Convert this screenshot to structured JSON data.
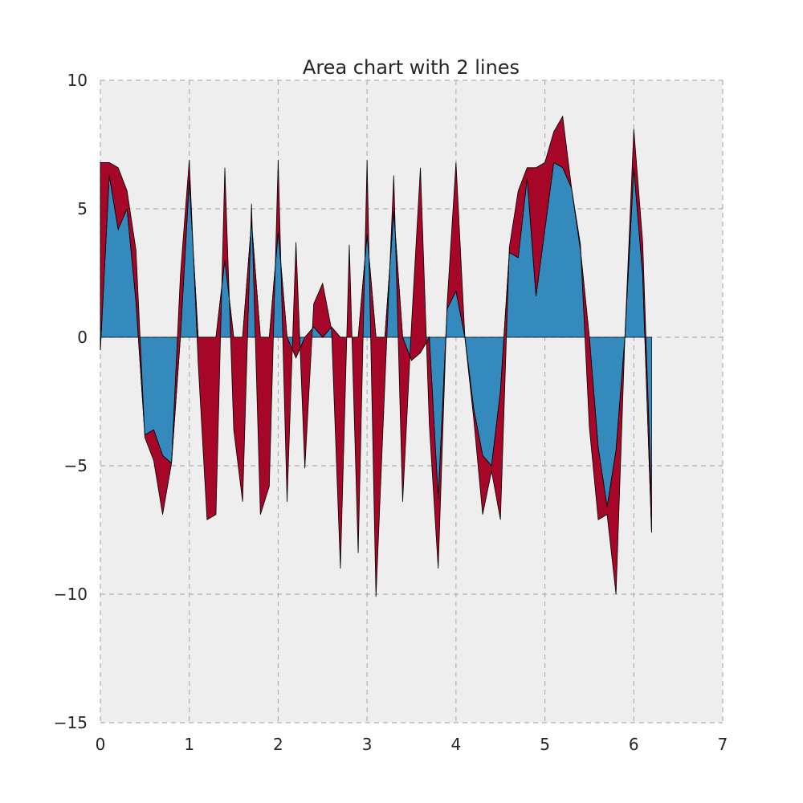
{
  "chart_data": {
    "type": "area",
    "title": "Area chart with 2 lines",
    "xlabel": "",
    "ylabel": "",
    "xlim": [
      0,
      7
    ],
    "ylim": [
      -15,
      10
    ],
    "xticks": [
      "0",
      "1",
      "2",
      "3",
      "4",
      "5",
      "6",
      "7"
    ],
    "yticks": [
      "10",
      "5",
      "0",
      "−5",
      "−10",
      "−15"
    ],
    "grid": true,
    "stacked": true,
    "x": [
      0.0,
      0.1,
      0.2,
      0.3,
      0.4,
      0.5,
      0.6,
      0.7,
      0.8,
      0.9,
      1.0,
      1.1,
      1.2,
      1.3,
      1.4,
      1.5,
      1.6,
      1.7,
      1.8,
      1.9,
      2.0,
      2.1,
      2.2,
      2.3,
      2.4,
      2.5,
      2.6,
      2.7,
      2.8,
      2.9,
      3.0,
      3.1,
      3.2,
      3.3,
      3.4,
      3.5,
      3.6,
      3.7,
      3.8,
      3.9,
      4.0,
      4.1,
      4.2,
      4.3,
      4.4,
      4.5,
      4.6,
      4.7,
      4.8,
      4.9,
      5.0,
      5.1,
      5.2,
      5.3,
      5.4,
      5.5,
      5.6,
      5.7,
      5.8,
      5.9,
      6.0,
      6.1,
      6.2
    ],
    "series": [
      {
        "color": "#348abd",
        "values": [
          -0.5,
          6.3,
          4.2,
          5.0,
          1.4,
          -3.8,
          -3.6,
          -4.6,
          -4.9,
          0.0,
          6.1,
          0.0,
          0.0,
          0.0,
          3.0,
          0.0,
          0.0,
          4.5,
          0.0,
          0.0,
          4.1,
          0.0,
          -0.8,
          0.0,
          0.4,
          0.0,
          0.4,
          0.0,
          0.0,
          0.0,
          4.0,
          0.0,
          0.0,
          4.9,
          0.0,
          -0.9,
          -0.6,
          0.0,
          -6.3,
          1.1,
          1.8,
          0.0,
          -2.8,
          -4.6,
          -5.0,
          -2.1,
          3.3,
          3.1,
          6.2,
          1.6,
          4.2,
          6.8,
          6.6,
          5.8,
          3.4,
          0.0,
          -4.3,
          -6.6,
          -4.4,
          0.0,
          6.6,
          2.4,
          -7.6
        ]
      },
      {
        "color": "#a60628",
        "values": [
          7.3,
          0.5,
          2.4,
          0.7,
          2.0,
          -0.1,
          -1.2,
          -2.3,
          0.0,
          2.4,
          0.8,
          -1.0,
          -7.1,
          -6.9,
          3.6,
          -3.6,
          -6.4,
          0.7,
          -6.9,
          -5.8,
          2.8,
          -6.4,
          4.5,
          -5.1,
          0.9,
          2.1,
          -0.1,
          -9.0,
          3.6,
          -8.4,
          2.9,
          -10.1,
          -1.8,
          1.4,
          -6.4,
          1.4,
          7.2,
          -3.4,
          -2.7,
          0.2,
          5.0,
          0.0,
          -0.4,
          -2.3,
          -0.2,
          -5.0,
          0.2,
          2.6,
          0.4,
          5.0,
          2.6,
          1.2,
          2.0,
          0.0,
          0.2,
          -3.5,
          -2.8,
          -0.3,
          -5.6,
          0.0,
          1.5,
          1.3,
          1.2
        ]
      }
    ]
  }
}
